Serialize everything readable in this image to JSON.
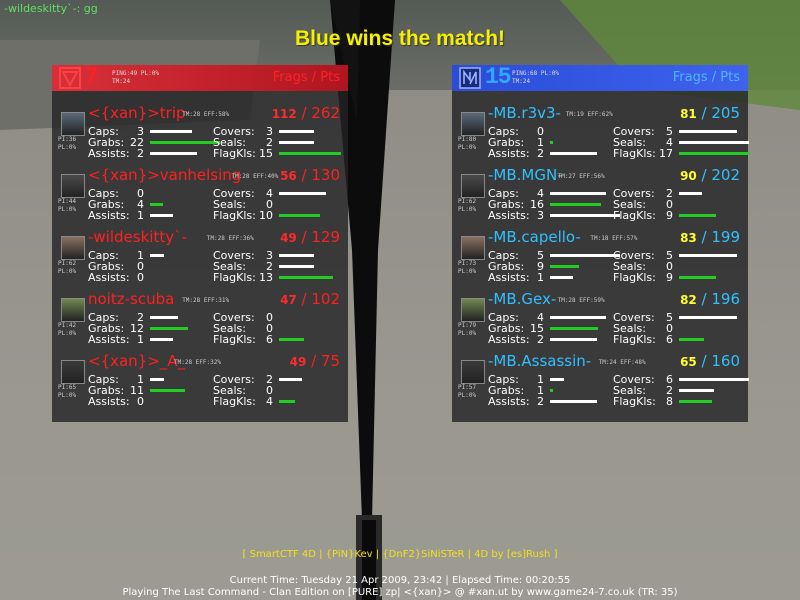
{
  "chat_line": "-wildeskitty`-: gg",
  "winner_message": "Blue wins the match!",
  "frags_pts_label": "Frags / Pts",
  "colors": {
    "red": "#ff2020",
    "blue": "#30c0ff",
    "bar_green": "#22cc22",
    "bar_white": "#ffffff",
    "winner_yellow": "#f5f000"
  },
  "teams": [
    {
      "side": "red",
      "score": "7",
      "ping_line": "PING:49 PL:0%",
      "time_line": "TM:24",
      "players": [
        {
          "name": "<{xan}>trip",
          "time_eff": "TM:28 EFF:58%",
          "pi_line": "PI:36",
          "pl_line": "PL:0%",
          "frags": "112",
          "pts": "262",
          "caps": "3",
          "grabs": "22",
          "assists": "2",
          "covers": "3",
          "seals": "2",
          "flagkls": "15"
        },
        {
          "name": "<{xan}>vanhelsing",
          "time_eff": "TM:28 EFF:40%",
          "pi_line": "PI:44",
          "pl_line": "PL:0%",
          "frags": "56",
          "pts": "130",
          "caps": "0",
          "grabs": "4",
          "assists": "1",
          "covers": "4",
          "seals": "0",
          "flagkls": "10"
        },
        {
          "name": "-wildeskitty`-",
          "time_eff": "TM:28 EFF:36%",
          "pi_line": "PI:62",
          "pl_line": "PL:0%",
          "frags": "49",
          "pts": "129",
          "caps": "1",
          "grabs": "0",
          "assists": "0",
          "covers": "3",
          "seals": "2",
          "flagkls": "13"
        },
        {
          "name": "noitz-scuba",
          "time_eff": "TM:28 EFF:31%",
          "pi_line": "PI:42",
          "pl_line": "PL:0%",
          "frags": "47",
          "pts": "102",
          "caps": "2",
          "grabs": "12",
          "assists": "1",
          "covers": "0",
          "seals": "0",
          "flagkls": "6"
        },
        {
          "name": "<{xan}>_A_",
          "time_eff": "TM:28 EFF:32%",
          "pi_line": "PI:65",
          "pl_line": "PL:0%",
          "frags": "49",
          "pts": "75",
          "caps": "1",
          "grabs": "11",
          "assists": "0",
          "covers": "2",
          "seals": "0",
          "flagkls": "4"
        }
      ]
    },
    {
      "side": "blue",
      "score": "15",
      "ping_line": "PING:68 PL:0%",
      "time_line": "TM:24",
      "players": [
        {
          "name": "-MB.r3v3-",
          "time_eff": "TM:19 EFF:62%",
          "pi_line": "PI:80",
          "pl_line": "PL:0%",
          "frags": "81",
          "pts": "205",
          "caps": "0",
          "grabs": "1",
          "assists": "2",
          "covers": "5",
          "seals": "4",
          "flagkls": "17"
        },
        {
          "name": "-MB.MGN-",
          "time_eff": "TM:27 EFF:56%",
          "pi_line": "PI:62",
          "pl_line": "PL:0%",
          "frags": "90",
          "pts": "202",
          "caps": "4",
          "grabs": "16",
          "assists": "3",
          "covers": "2",
          "seals": "0",
          "flagkls": "9"
        },
        {
          "name": "-MB.capello-",
          "time_eff": "TM:18 EFF:57%",
          "pi_line": "PI:73",
          "pl_line": "PL:0%",
          "frags": "83",
          "pts": "199",
          "caps": "5",
          "grabs": "9",
          "assists": "1",
          "covers": "5",
          "seals": "0",
          "flagkls": "9"
        },
        {
          "name": "-MB.Gex-",
          "time_eff": "TM:28 EFF:59%",
          "pi_line": "PI:79",
          "pl_line": "PL:0%",
          "frags": "82",
          "pts": "196",
          "caps": "4",
          "grabs": "15",
          "assists": "2",
          "covers": "5",
          "seals": "0",
          "flagkls": "6"
        },
        {
          "name": "-MB.Assassin-",
          "time_eff": "TM:24 EFF:48%",
          "pi_line": "PI:57",
          "pl_line": "PL:0%",
          "frags": "65",
          "pts": "160",
          "caps": "1",
          "grabs": "1",
          "assists": "2",
          "covers": "6",
          "seals": "2",
          "flagkls": "8"
        }
      ]
    }
  ],
  "stat_labels": {
    "caps": "Caps:",
    "grabs": "Grabs:",
    "assists": "Assists:",
    "covers": "Covers:",
    "seals": "Seals:",
    "flagkls": "FlagKls:"
  },
  "footer": {
    "credits": "[ SmartCTF 4D | {PiN}Kev | {DnF2}SiNiSTeR | 4D by [es]Rush ]",
    "time": "Current Time: Tuesday 21 Apr 2009, 23:42 | Elapsed Time: 00:20:55",
    "server": "Playing The Last Command - Clan Edition on [PURE] zp| <{xan}> @ #xan.ut by www.game24-7.co.uk (TR: 35)"
  }
}
